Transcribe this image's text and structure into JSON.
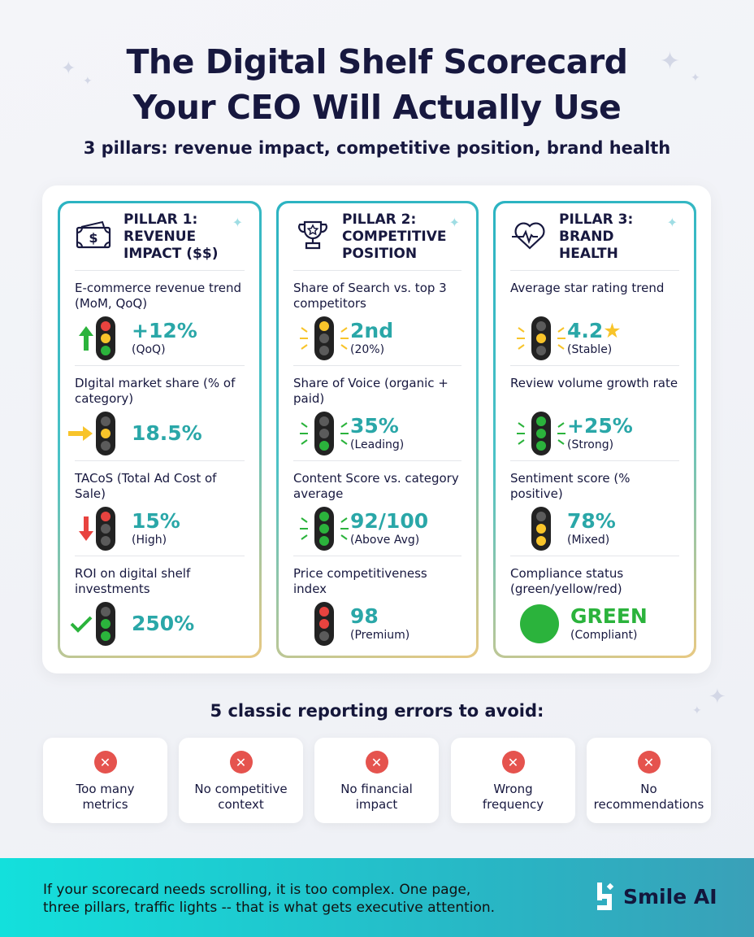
{
  "title_line1": "The Digital Shelf Scorecard",
  "title_line2": "Your CEO Will Actually Use",
  "subtitle": "3 pillars: revenue impact, competitive position, brand health",
  "colors": {
    "teal": "#2aa7a8",
    "red": "#e8433f",
    "yellow": "#f8c42a",
    "green": "#2bb33c",
    "navy": "#17183f"
  },
  "pillars": [
    {
      "icon": "money-icon",
      "title": [
        "PILLAR 1:",
        "REVENUE",
        "IMPACT ($$)"
      ],
      "rows": [
        {
          "label": "E-commerce revenue trend (MoM, QoQ)",
          "value": "+12%",
          "note": "(QoQ)",
          "indicator": "arrow-up",
          "lights": [
            "red",
            "yellow",
            "green"
          ]
        },
        {
          "label": "DIgital market share (% of category)",
          "value": "18.5%",
          "note": "",
          "indicator": "arrow-right",
          "lights": [
            "off",
            "yellow",
            "off"
          ]
        },
        {
          "label": "TACoS (Total Ad Cost of Sale)",
          "value": "15%",
          "note": "(High)",
          "indicator": "arrow-down",
          "lights": [
            "red",
            "off",
            "off"
          ]
        },
        {
          "label": "ROI on digital shelf investments",
          "value": "250%",
          "note": "",
          "indicator": "check",
          "lights": [
            "off",
            "green",
            "green"
          ]
        }
      ]
    },
    {
      "icon": "trophy-icon",
      "title": [
        "PILLAR 2:",
        "COMPETITIVE",
        "POSITION"
      ],
      "rows": [
        {
          "label": "Share of Search vs. top 3 competitors",
          "value": "2nd",
          "note": "(20%)",
          "indicator": "rays-yellow",
          "lights": [
            "yellow",
            "off",
            "off"
          ]
        },
        {
          "label": "Share of Voice (organic + paid)",
          "value": "35%",
          "note": "(Leading)",
          "indicator": "rays-green",
          "lights": [
            "off",
            "off",
            "green"
          ]
        },
        {
          "label": "Content Score vs. category average",
          "value": "92/100",
          "note": "(Above Avg)",
          "indicator": "rays-green",
          "lights": [
            "green",
            "green",
            "green"
          ]
        },
        {
          "label": "Price competitiveness index",
          "value": "98",
          "note": "(Premium)",
          "indicator": "none",
          "lights": [
            "red",
            "red",
            "off"
          ]
        }
      ]
    },
    {
      "icon": "heart-pulse-icon",
      "title": [
        "PILLAR 3:",
        "BRAND",
        "HEALTH"
      ],
      "rows": [
        {
          "label": "Average star rating trend",
          "value": "4.2",
          "note": "(Stable)",
          "indicator": "rays-yellow",
          "lights": [
            "off",
            "yellow",
            "off"
          ],
          "star": true
        },
        {
          "label": "Review volume growth rate",
          "value": "+25%",
          "note": "(Strong)",
          "indicator": "rays-green",
          "lights": [
            "green",
            "green",
            "green"
          ]
        },
        {
          "label": "Sentiment score (% positive)",
          "value": "78%",
          "note": "(Mixed)",
          "indicator": "none",
          "lights": [
            "off",
            "yellow",
            "yellow"
          ]
        },
        {
          "label": "Compliance status (green/yellow/red)",
          "value": "GREEN",
          "note": "(Compliant)",
          "indicator": "green-circle",
          "lights": []
        }
      ]
    }
  ],
  "errors_title": "5 classic reporting errors to avoid:",
  "errors": [
    {
      "line1": "Too many",
      "line2": "metrics"
    },
    {
      "line1": "No competitive",
      "line2": "context"
    },
    {
      "line1": "No financial",
      "line2": "impact"
    },
    {
      "line1": "Wrong",
      "line2": "frequency"
    },
    {
      "line1": "No",
      "line2": "recommendations"
    }
  ],
  "footer": {
    "line1": "If your scorecard needs scrolling, it is too complex. One page,",
    "line2": "three pillars, traffic lights -- that is what gets executive attention.",
    "brand": "Smile AI"
  }
}
